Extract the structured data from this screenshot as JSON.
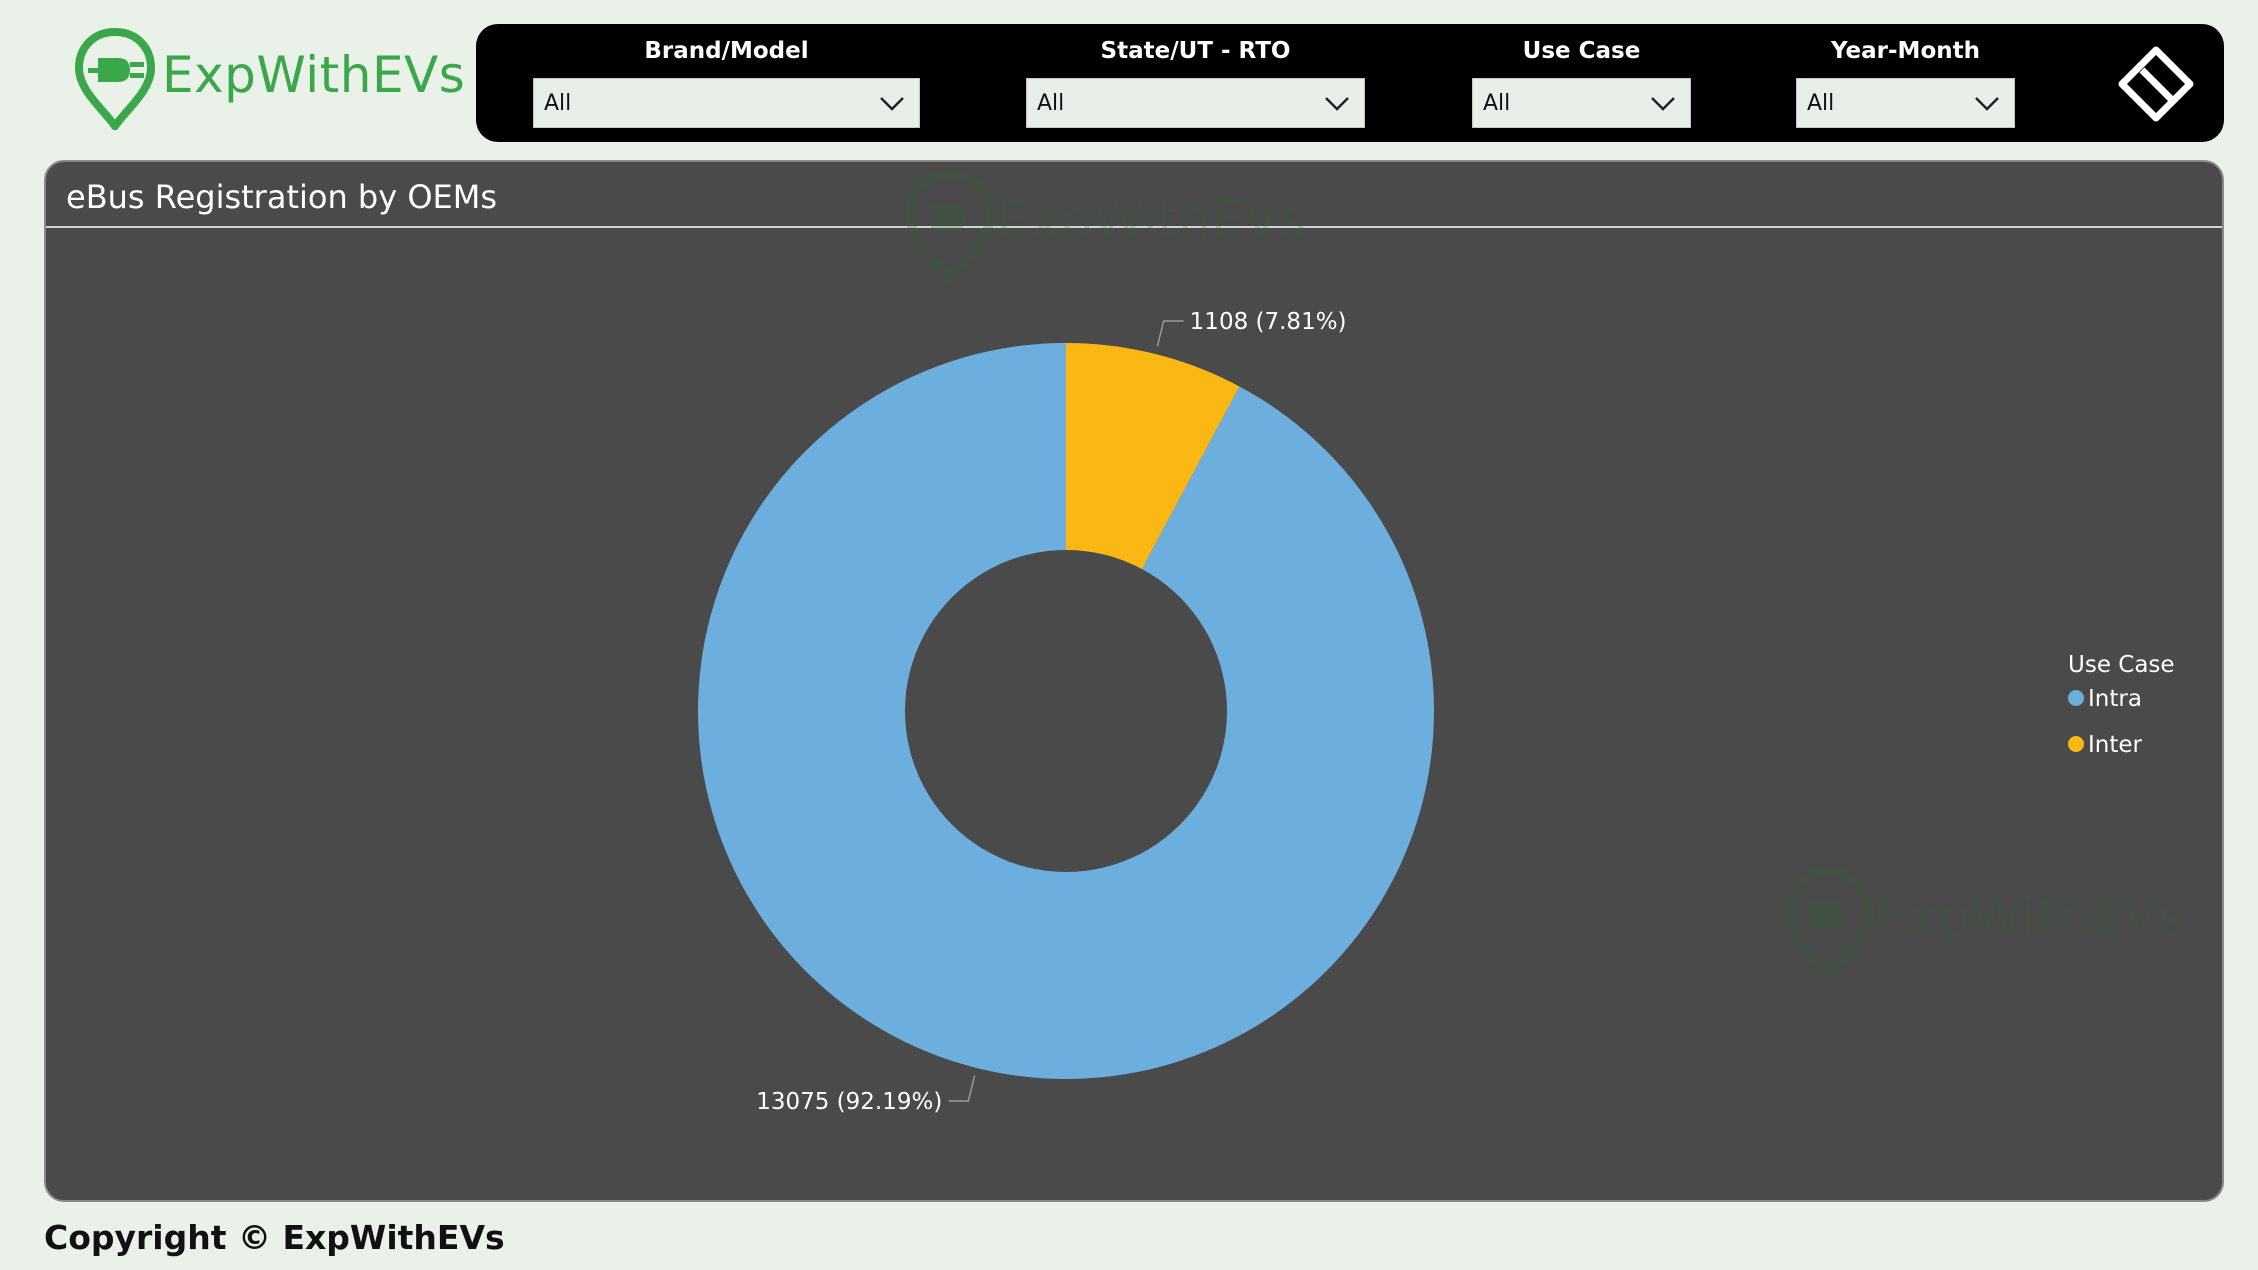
{
  "brand": {
    "name": "ExpWithEVs",
    "color": "#3aa84a"
  },
  "filters": [
    {
      "label": "Brand/Model",
      "value": "All"
    },
    {
      "label": "State/UT - RTO",
      "value": "All"
    },
    {
      "label": "Use Case",
      "value": "All"
    },
    {
      "label": "Year-Month",
      "value": "All"
    }
  ],
  "reset_icon": "eraser-icon",
  "panel": {
    "title": "eBus Registration by OEMs"
  },
  "watermark": "ExpWithEVs",
  "legend": {
    "title": "Use Case"
  },
  "chart_data": {
    "type": "pie",
    "donut": true,
    "title": "eBus Registration by OEMs",
    "legend_title": "Use Case",
    "legend_position": "right",
    "slices": [
      {
        "label": "Intra",
        "value": 13075,
        "percent": 92.19,
        "display": "13075 (92.19%)",
        "color": "#6caedd"
      },
      {
        "label": "Inter",
        "value": 1108,
        "percent": 7.81,
        "display": "1108 (7.81%)",
        "color": "#fbb713"
      }
    ]
  },
  "footer": {
    "copyright": "Copyright © ExpWithEVs"
  }
}
